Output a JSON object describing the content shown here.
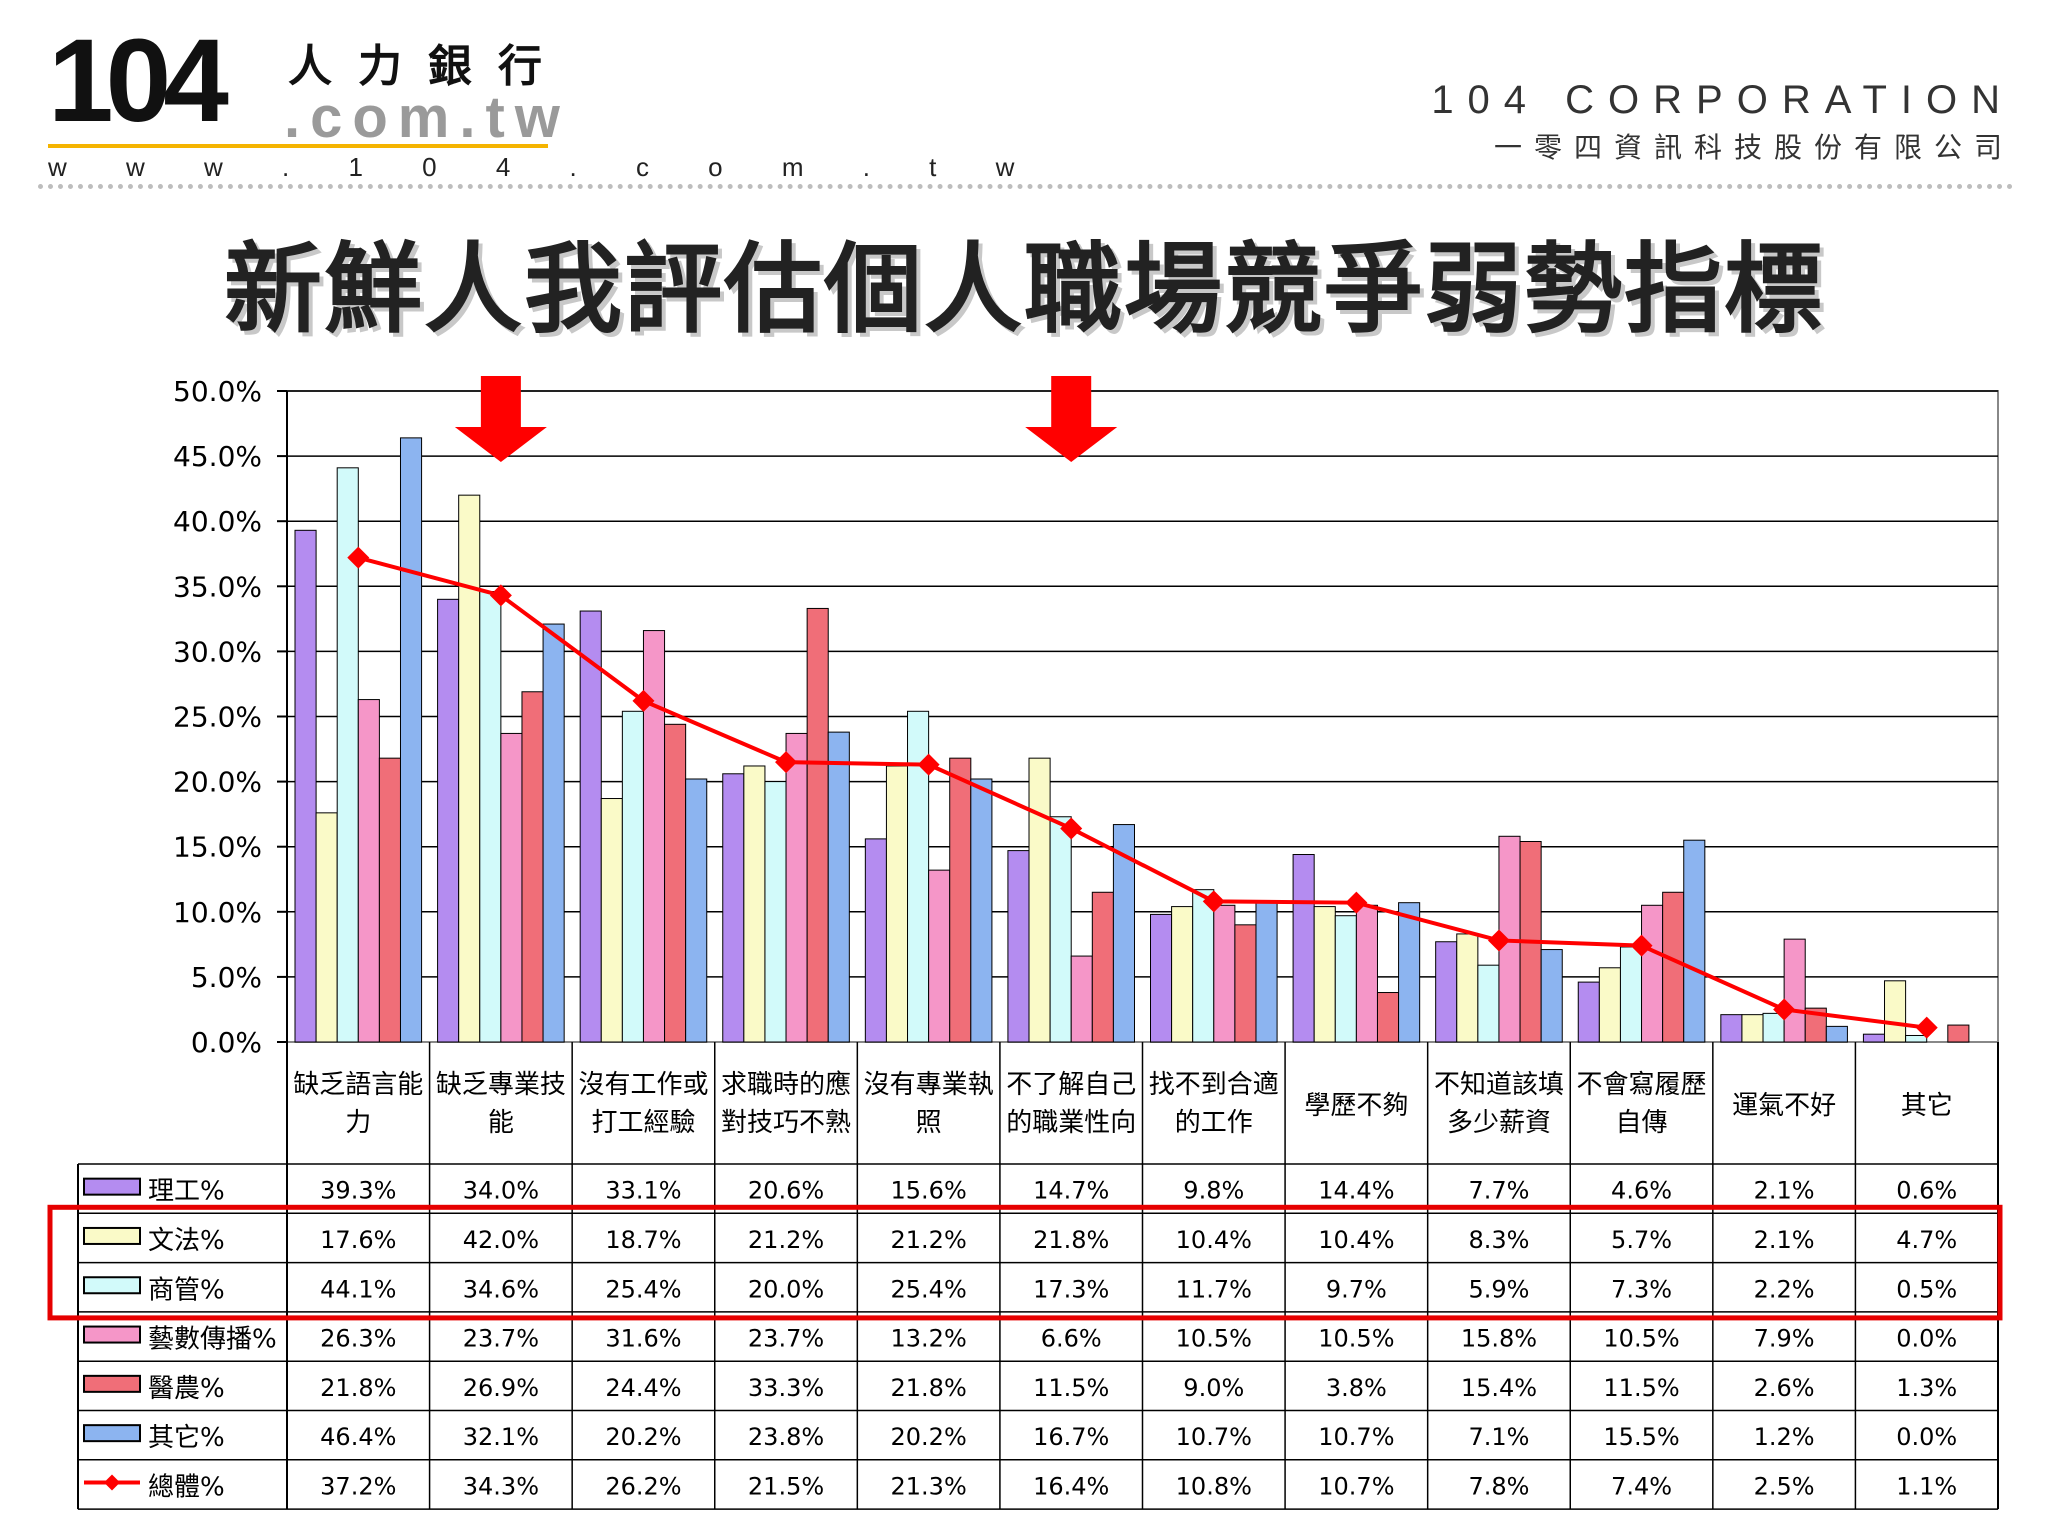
{
  "logo": {
    "number": "104",
    "brand_cn": "人力銀行",
    "domain": ".com.tw",
    "url": "w w w . 1 0 4 . c o m . t w"
  },
  "corp": {
    "name_en": "104 CORPORATION",
    "name_cn": "一零四資訊科技股份有限公司"
  },
  "title": "新鮮人我評估個人職場競爭弱勢指標",
  "chart_data": {
    "type": "bar",
    "categories": [
      [
        "缺乏語言能",
        "力"
      ],
      [
        "缺乏專業技",
        "能"
      ],
      [
        "沒有工作或",
        "打工經驗"
      ],
      [
        "求職時的應",
        "對技巧不熟"
      ],
      [
        "沒有專業執",
        "照"
      ],
      [
        "不了解自己",
        "的職業性向"
      ],
      [
        "找不到合適",
        "的工作"
      ],
      [
        "學歷不夠"
      ],
      [
        "不知道該填",
        "多少薪資"
      ],
      [
        "不會寫履歷",
        "自傳"
      ],
      [
        "運氣不好"
      ],
      [
        "其它"
      ]
    ],
    "series": [
      {
        "name": "理工%",
        "color": "#b48cf0",
        "values": [
          39.3,
          34.0,
          33.1,
          20.6,
          15.6,
          14.7,
          9.8,
          14.4,
          7.7,
          4.6,
          2.1,
          0.6
        ],
        "labels": [
          "39.3%",
          "34.0%",
          "33.1%",
          "20.6%",
          "15.6%",
          "14.7%",
          "9.8%",
          "14.4%",
          "7.7%",
          "4.6%",
          "2.1%",
          "0.6%"
        ]
      },
      {
        "name": "文法%",
        "color": "#fafac8",
        "values": [
          17.6,
          42.0,
          18.7,
          21.2,
          21.2,
          21.8,
          10.4,
          10.4,
          8.3,
          5.7,
          2.1,
          4.7
        ],
        "labels": [
          "17.6%",
          "42.0%",
          "18.7%",
          "21.2%",
          "21.2%",
          "21.8%",
          "10.4%",
          "10.4%",
          "8.3%",
          "5.7%",
          "2.1%",
          "4.7%"
        ]
      },
      {
        "name": "商管%",
        "color": "#d2fafa",
        "values": [
          44.1,
          34.6,
          25.4,
          20.0,
          25.4,
          17.3,
          11.7,
          9.7,
          5.9,
          7.3,
          2.2,
          0.5
        ],
        "labels": [
          "44.1%",
          "34.6%",
          "25.4%",
          "20.0%",
          "25.4%",
          "17.3%",
          "11.7%",
          "9.7%",
          "5.9%",
          "7.3%",
          "2.2%",
          "0.5%"
        ]
      },
      {
        "name": "藝數傳播%",
        "color": "#f596c8",
        "values": [
          26.3,
          23.7,
          31.6,
          23.7,
          13.2,
          6.6,
          10.5,
          10.5,
          15.8,
          10.5,
          7.9,
          0.0
        ],
        "labels": [
          "26.3%",
          "23.7%",
          "31.6%",
          "23.7%",
          "13.2%",
          "6.6%",
          "10.5%",
          "10.5%",
          "15.8%",
          "10.5%",
          "7.9%",
          "0.0%"
        ]
      },
      {
        "name": "醫農%",
        "color": "#f06e78",
        "values": [
          21.8,
          26.9,
          24.4,
          33.3,
          21.8,
          11.5,
          9.0,
          3.8,
          15.4,
          11.5,
          2.6,
          1.3
        ],
        "labels": [
          "21.8%",
          "26.9%",
          "24.4%",
          "33.3%",
          "21.8%",
          "11.5%",
          "9.0%",
          "3.8%",
          "15.4%",
          "11.5%",
          "2.6%",
          "1.3%"
        ]
      },
      {
        "name": "其它%",
        "color": "#8cb4f0",
        "values": [
          46.4,
          32.1,
          20.2,
          23.8,
          20.2,
          16.7,
          10.7,
          10.7,
          7.1,
          15.5,
          1.2,
          0.0
        ],
        "labels": [
          "46.4%",
          "32.1%",
          "20.2%",
          "23.8%",
          "20.2%",
          "16.7%",
          "10.7%",
          "10.7%",
          "7.1%",
          "15.5%",
          "1.2%",
          "0.0%"
        ]
      }
    ],
    "total": {
      "name": "總體%",
      "color": "#ff0000",
      "values": [
        37.2,
        34.3,
        26.2,
        21.5,
        21.3,
        16.4,
        10.8,
        10.7,
        7.8,
        7.4,
        2.5,
        1.1
      ],
      "labels": [
        "37.2%",
        "34.3%",
        "26.2%",
        "21.5%",
        "21.3%",
        "16.4%",
        "10.8%",
        "10.7%",
        "7.8%",
        "7.4%",
        "2.5%",
        "1.1%"
      ]
    },
    "yaxis": {
      "min": 0,
      "max": 50,
      "ticks": [
        "0.0%",
        "5.0%",
        "10.0%",
        "15.0%",
        "20.0%",
        "25.0%",
        "30.0%",
        "35.0%",
        "40.0%",
        "45.0%",
        "50.0%"
      ]
    },
    "grid": true,
    "legend": "data-table",
    "highlight_arrows_at_categories": [
      1,
      5
    ],
    "highlighted_rows": [
      "文法%",
      "商管%"
    ],
    "highlight_color": "#e60000"
  }
}
